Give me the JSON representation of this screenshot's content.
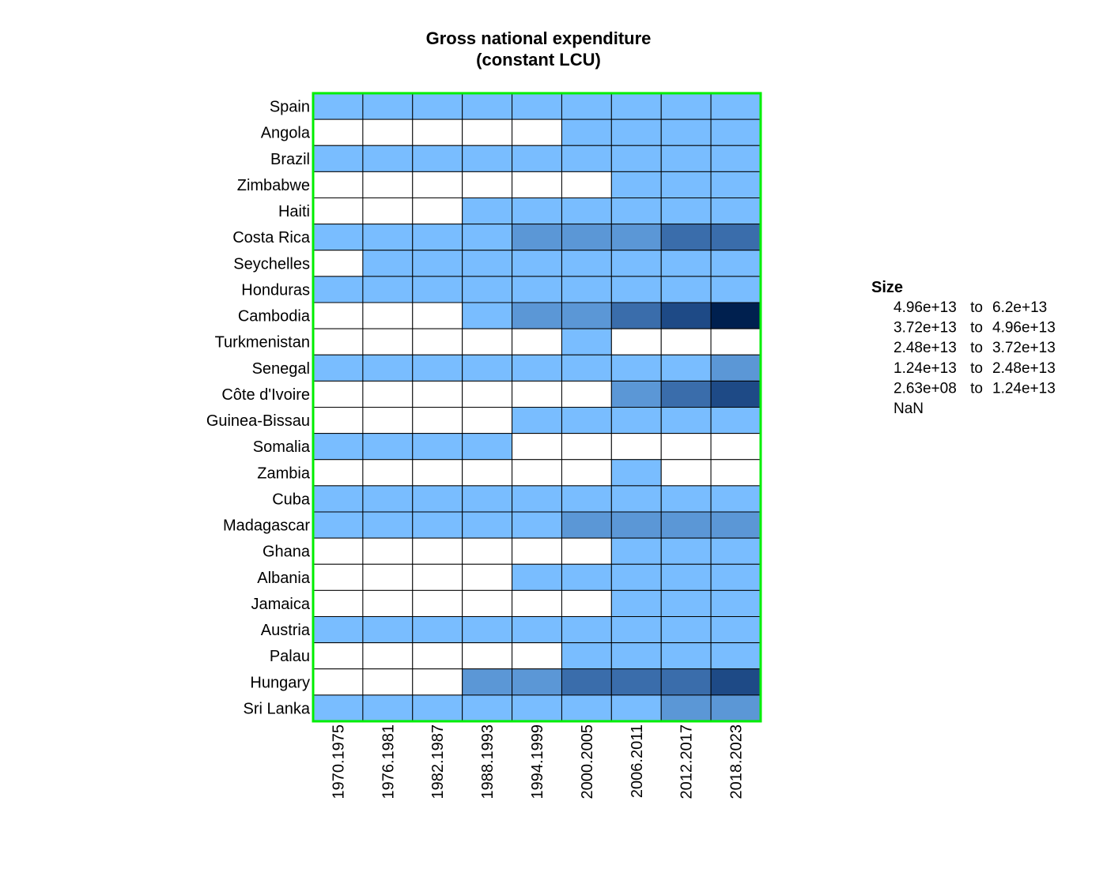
{
  "chart_data": {
    "type": "heatmap",
    "title_line1": "Gross national expenditure",
    "title_line2": "(constant LCU)",
    "xlabel": "",
    "ylabel": "",
    "columns": [
      "1970.1975",
      "1976.1981",
      "1982.1987",
      "1988.1993",
      "1994.1999",
      "2000.2005",
      "2006.2011",
      "2012.2017",
      "2018.2023"
    ],
    "rows": [
      "Spain",
      "Angola",
      "Brazil",
      "Zimbabwe",
      "Haiti",
      "Costa Rica",
      "Seychelles",
      "Honduras",
      "Cambodia",
      "Turkmenistan",
      "Senegal",
      "Côte d'Ivoire",
      "Guinea-Bissau",
      "Somalia",
      "Zambia",
      "Cuba",
      "Madagascar",
      "Ghana",
      "Albania",
      "Jamaica",
      "Austria",
      "Palau",
      "Hungary",
      "Sri Lanka"
    ],
    "cell_bins": [
      [
        5,
        5,
        5,
        5,
        5,
        5,
        5,
        5,
        5
      ],
      [
        0,
        0,
        0,
        0,
        0,
        5,
        5,
        5,
        5
      ],
      [
        5,
        5,
        5,
        5,
        5,
        5,
        5,
        5,
        5
      ],
      [
        0,
        0,
        0,
        0,
        0,
        0,
        5,
        5,
        5
      ],
      [
        0,
        0,
        0,
        5,
        5,
        5,
        5,
        5,
        5
      ],
      [
        5,
        5,
        5,
        5,
        4,
        4,
        4,
        3,
        3
      ],
      [
        0,
        5,
        5,
        5,
        5,
        5,
        5,
        5,
        5
      ],
      [
        5,
        5,
        5,
        5,
        5,
        5,
        5,
        5,
        5
      ],
      [
        0,
        0,
        0,
        5,
        4,
        4,
        3,
        2,
        1
      ],
      [
        0,
        0,
        0,
        0,
        0,
        5,
        0,
        0,
        0
      ],
      [
        5,
        5,
        5,
        5,
        5,
        5,
        5,
        5,
        4
      ],
      [
        0,
        0,
        0,
        0,
        0,
        0,
        4,
        3,
        2
      ],
      [
        0,
        0,
        0,
        0,
        5,
        5,
        5,
        5,
        5
      ],
      [
        5,
        5,
        5,
        5,
        0,
        0,
        0,
        0,
        0
      ],
      [
        0,
        0,
        0,
        0,
        0,
        0,
        5,
        0,
        0
      ],
      [
        5,
        5,
        5,
        5,
        5,
        5,
        5,
        5,
        5
      ],
      [
        5,
        5,
        5,
        5,
        5,
        4,
        4,
        4,
        4
      ],
      [
        0,
        0,
        0,
        0,
        0,
        0,
        5,
        5,
        5
      ],
      [
        0,
        0,
        0,
        0,
        5,
        5,
        5,
        5,
        5
      ],
      [
        0,
        0,
        0,
        0,
        0,
        0,
        5,
        5,
        5
      ],
      [
        5,
        5,
        5,
        5,
        5,
        5,
        5,
        5,
        5
      ],
      [
        0,
        0,
        0,
        0,
        0,
        5,
        5,
        5,
        5
      ],
      [
        0,
        0,
        0,
        4,
        4,
        3,
        3,
        3,
        2
      ],
      [
        5,
        5,
        5,
        5,
        5,
        5,
        5,
        4,
        4
      ]
    ],
    "legend": {
      "title": "Size",
      "position": "right",
      "items": [
        {
          "bin": 1,
          "low": "4.96e+13",
          "sep": "to",
          "high": "6.2e+13",
          "color": "#00204f"
        },
        {
          "bin": 2,
          "low": "3.72e+13",
          "sep": "to",
          "high": "4.96e+13",
          "color": "#1e4a86"
        },
        {
          "bin": 3,
          "low": "2.48e+13",
          "sep": "to",
          "high": "3.72e+13",
          "color": "#3a6dab"
        },
        {
          "bin": 4,
          "low": "1.24e+13",
          "sep": "to",
          "high": "2.48e+13",
          "color": "#5b97d6"
        },
        {
          "bin": 5,
          "low": "2.63e+08",
          "sep": "to",
          "high": "1.24e+13",
          "color": "#79bdff"
        },
        {
          "bin": 0,
          "low": "NaN",
          "sep": "",
          "high": "",
          "color": "#ffffff"
        }
      ]
    },
    "colors": {
      "frame": "#00ee00",
      "cell_border": "#000000",
      "missing": "#ffffff"
    },
    "grid": true
  }
}
